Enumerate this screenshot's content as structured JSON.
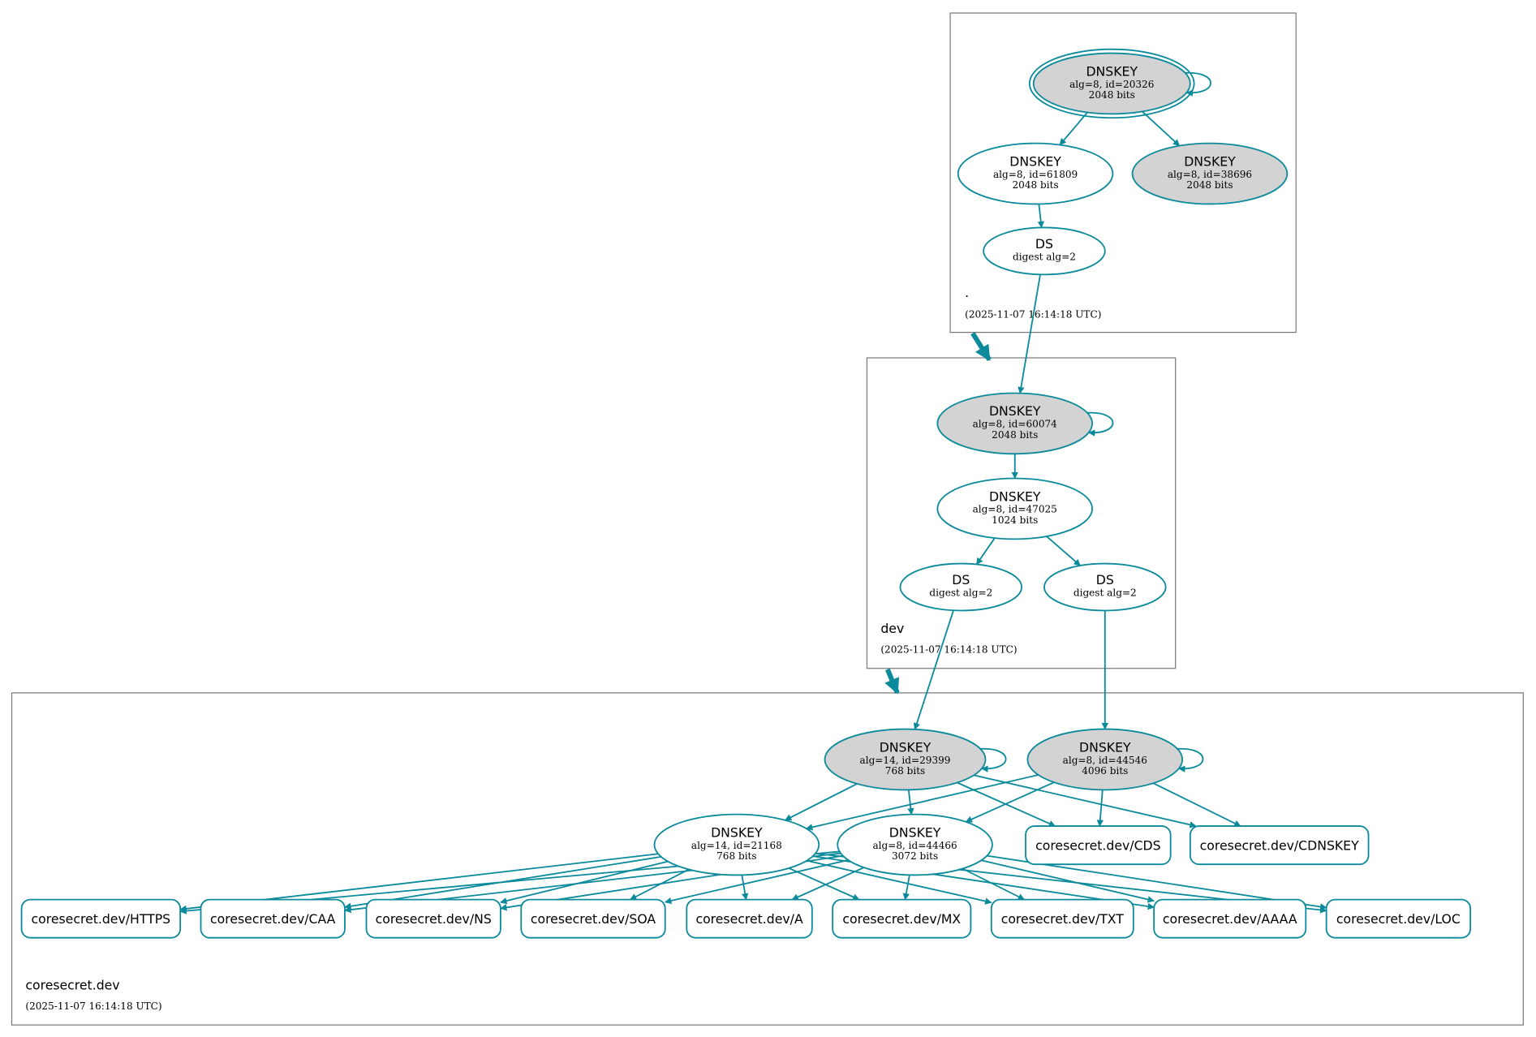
{
  "colors": {
    "edge": "#0a8a9a",
    "cluster_border": "#777777",
    "ksk_fill": "#d3d3d3",
    "node_fill": "#ffffff"
  },
  "zones": [
    {
      "id": "root",
      "name": ".",
      "timestamp": "(2025-11-07 16:14:18 UTC)"
    },
    {
      "id": "dev",
      "name": "dev",
      "timestamp": "(2025-11-07 16:14:18 UTC)"
    },
    {
      "id": "coresecret",
      "name": "coresecret.dev",
      "timestamp": "(2025-11-07 16:14:18 UTC)"
    }
  ],
  "nodes": [
    {
      "id": "k20326",
      "title": "DNSKEY",
      "line1": "alg=8, id=20326",
      "line2": "2048 bits",
      "fill": "gray",
      "double": true
    },
    {
      "id": "k61809",
      "title": "DNSKEY",
      "line1": "alg=8, id=61809",
      "line2": "2048 bits",
      "fill": "white"
    },
    {
      "id": "k38696",
      "title": "DNSKEY",
      "line1": "alg=8, id=38696",
      "line2": "2048 bits",
      "fill": "gray"
    },
    {
      "id": "dsroot",
      "title": "DS",
      "line1": "digest alg=2",
      "fill": "white"
    },
    {
      "id": "k60074",
      "title": "DNSKEY",
      "line1": "alg=8, id=60074",
      "line2": "2048 bits",
      "fill": "gray"
    },
    {
      "id": "k47025",
      "title": "DNSKEY",
      "line1": "alg=8, id=47025",
      "line2": "1024 bits",
      "fill": "white"
    },
    {
      "id": "ds1",
      "title": "DS",
      "line1": "digest alg=2",
      "fill": "white"
    },
    {
      "id": "ds2",
      "title": "DS",
      "line1": "digest alg=2",
      "fill": "white"
    },
    {
      "id": "k29399",
      "title": "DNSKEY",
      "line1": "alg=14, id=29399",
      "line2": "768 bits",
      "fill": "gray"
    },
    {
      "id": "k44546",
      "title": "DNSKEY",
      "line1": "alg=8, id=44546",
      "line2": "4096 bits",
      "fill": "gray"
    },
    {
      "id": "k21168",
      "title": "DNSKEY",
      "line1": "alg=14, id=21168",
      "line2": "768 bits",
      "fill": "white"
    },
    {
      "id": "k44466",
      "title": "DNSKEY",
      "line1": "alg=8, id=44466",
      "line2": "3072 bits",
      "fill": "white"
    }
  ],
  "rrsets": [
    {
      "id": "cds",
      "label": "coresecret.dev/CDS"
    },
    {
      "id": "cdnskey",
      "label": "coresecret.dev/CDNSKEY"
    },
    {
      "id": "https",
      "label": "coresecret.dev/HTTPS"
    },
    {
      "id": "caa",
      "label": "coresecret.dev/CAA"
    },
    {
      "id": "ns",
      "label": "coresecret.dev/NS"
    },
    {
      "id": "soa",
      "label": "coresecret.dev/SOA"
    },
    {
      "id": "a",
      "label": "coresecret.dev/A"
    },
    {
      "id": "mx",
      "label": "coresecret.dev/MX"
    },
    {
      "id": "txt",
      "label": "coresecret.dev/TXT"
    },
    {
      "id": "aaaa",
      "label": "coresecret.dev/AAAA"
    },
    {
      "id": "loc",
      "label": "coresecret.dev/LOC"
    }
  ]
}
